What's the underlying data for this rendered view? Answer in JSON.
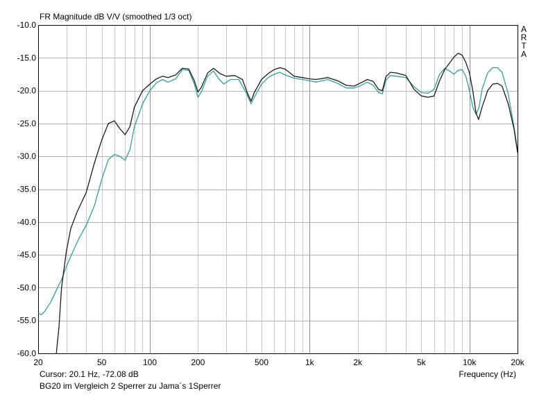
{
  "title": "FR Magnitude dB V/V (smoothed 1/3 oct)",
  "brand_letters": [
    "A",
    "R",
    "T",
    "A"
  ],
  "cursor_readout": "Cursor: 20.1 Hz, -72.08 dB",
  "caption": "BG20 im Vergleich 2 Sperrer zu Jama´s 1Sperrer",
  "chart_data": {
    "type": "line",
    "title": "FR Magnitude dB V/V (smoothed 1/3 oct)",
    "xlabel": "Frequency (Hz)",
    "ylabel": "",
    "x_scale": "log",
    "xlim": [
      20,
      20000
    ],
    "ylim": [
      -60,
      -10
    ],
    "grid": true,
    "x_tick_labels": [
      {
        "value": 20,
        "label": "20"
      },
      {
        "value": 50,
        "label": "50"
      },
      {
        "value": 100,
        "label": "100"
      },
      {
        "value": 200,
        "label": "200"
      },
      {
        "value": 500,
        "label": "500"
      },
      {
        "value": 1000,
        "label": "1k"
      },
      {
        "value": 2000,
        "label": "2k"
      },
      {
        "value": 5000,
        "label": "5k"
      },
      {
        "value": 10000,
        "label": "10k"
      },
      {
        "value": 20000,
        "label": "20k"
      }
    ],
    "y_ticks": [
      -10,
      -15,
      -20,
      -25,
      -30,
      -35,
      -40,
      -45,
      -50,
      -55,
      -60
    ],
    "y_tick_labels": [
      "-10.0",
      "-15.0",
      "-20.0",
      "-25.0",
      "-30.0",
      "-35.0",
      "-40.0",
      "-45.0",
      "-50.0",
      "-55.0",
      "-60.0"
    ],
    "series": [
      {
        "color": "#1a1a1a",
        "points": [
          [
            26,
            -60
          ],
          [
            27,
            -56
          ],
          [
            28,
            -50
          ],
          [
            30,
            -44.5
          ],
          [
            32,
            -41
          ],
          [
            35,
            -38.5
          ],
          [
            40,
            -35.5
          ],
          [
            45,
            -31
          ],
          [
            50,
            -27.5
          ],
          [
            55,
            -25
          ],
          [
            60,
            -24.6
          ],
          [
            65,
            -25.8
          ],
          [
            70,
            -26.7
          ],
          [
            75,
            -25.5
          ],
          [
            80,
            -22.5
          ],
          [
            90,
            -20
          ],
          [
            100,
            -19
          ],
          [
            110,
            -18.2
          ],
          [
            120,
            -17.8
          ],
          [
            130,
            -18
          ],
          [
            145,
            -17.6
          ],
          [
            160,
            -16.6
          ],
          [
            175,
            -16.7
          ],
          [
            190,
            -18.5
          ],
          [
            200,
            -20.2
          ],
          [
            210,
            -19.5
          ],
          [
            230,
            -17.3
          ],
          [
            250,
            -16.6
          ],
          [
            275,
            -17.4
          ],
          [
            300,
            -17.8
          ],
          [
            340,
            -17.7
          ],
          [
            380,
            -18.3
          ],
          [
            410,
            -20.5
          ],
          [
            430,
            -21.6
          ],
          [
            450,
            -20.3
          ],
          [
            500,
            -18.3
          ],
          [
            550,
            -17.4
          ],
          [
            600,
            -16.8
          ],
          [
            650,
            -16.5
          ],
          [
            700,
            -16.7
          ],
          [
            800,
            -17.8
          ],
          [
            900,
            -18.0
          ],
          [
            1000,
            -18.2
          ],
          [
            1100,
            -18.3
          ],
          [
            1300,
            -18.0
          ],
          [
            1500,
            -18.5
          ],
          [
            1700,
            -19.2
          ],
          [
            1900,
            -19.3
          ],
          [
            2100,
            -18.8
          ],
          [
            2300,
            -18.3
          ],
          [
            2500,
            -18.6
          ],
          [
            2700,
            -19.8
          ],
          [
            2850,
            -20.0
          ],
          [
            3000,
            -17.9
          ],
          [
            3200,
            -17.2
          ],
          [
            3500,
            -17.3
          ],
          [
            4000,
            -17.7
          ],
          [
            4500,
            -19.8
          ],
          [
            5000,
            -20.8
          ],
          [
            5500,
            -21.0
          ],
          [
            6000,
            -20.8
          ],
          [
            6500,
            -18.5
          ],
          [
            7000,
            -16.8
          ],
          [
            7500,
            -15.8
          ],
          [
            8000,
            -14.9
          ],
          [
            8500,
            -14.3
          ],
          [
            9000,
            -14.6
          ],
          [
            9500,
            -15.7
          ],
          [
            10000,
            -17.3
          ],
          [
            10500,
            -20
          ],
          [
            11000,
            -23.4
          ],
          [
            11400,
            -24.4
          ],
          [
            12000,
            -22.5
          ],
          [
            13000,
            -20.0
          ],
          [
            14000,
            -19.0
          ],
          [
            15000,
            -18.9
          ],
          [
            16000,
            -19.3
          ],
          [
            17500,
            -22
          ],
          [
            19000,
            -25.8
          ],
          [
            20000,
            -29.4
          ]
        ]
      },
      {
        "color": "#3a9a9a",
        "points": [
          [
            20,
            -53.9
          ],
          [
            21,
            -54.1
          ],
          [
            22,
            -53.6
          ],
          [
            24,
            -52.2
          ],
          [
            26,
            -50.4
          ],
          [
            28,
            -48.8
          ],
          [
            30,
            -46.8
          ],
          [
            33,
            -44.5
          ],
          [
            36,
            -42.5
          ],
          [
            40,
            -40.5
          ],
          [
            45,
            -37.5
          ],
          [
            50,
            -33.5
          ],
          [
            55,
            -30.5
          ],
          [
            60,
            -29.7
          ],
          [
            65,
            -30.0
          ],
          [
            70,
            -30.6
          ],
          [
            75,
            -29.0
          ],
          [
            80,
            -25.5
          ],
          [
            90,
            -22.0
          ],
          [
            100,
            -20.0
          ],
          [
            110,
            -18.8
          ],
          [
            120,
            -18.3
          ],
          [
            130,
            -18.7
          ],
          [
            145,
            -18.2
          ],
          [
            160,
            -16.8
          ],
          [
            175,
            -16.9
          ],
          [
            190,
            -19.0
          ],
          [
            200,
            -21.0
          ],
          [
            210,
            -20.2
          ],
          [
            230,
            -17.8
          ],
          [
            250,
            -17.0
          ],
          [
            270,
            -18.2
          ],
          [
            290,
            -19.0
          ],
          [
            320,
            -18.3
          ],
          [
            360,
            -18.3
          ],
          [
            400,
            -20.3
          ],
          [
            430,
            -22.0
          ],
          [
            450,
            -21.0
          ],
          [
            500,
            -19.0
          ],
          [
            550,
            -18.0
          ],
          [
            600,
            -17.5
          ],
          [
            650,
            -17.2
          ],
          [
            700,
            -17.6
          ],
          [
            800,
            -18.1
          ],
          [
            900,
            -18.3
          ],
          [
            1000,
            -18.5
          ],
          [
            1100,
            -18.7
          ],
          [
            1300,
            -18.3
          ],
          [
            1500,
            -18.9
          ],
          [
            1700,
            -19.6
          ],
          [
            1900,
            -19.6
          ],
          [
            2100,
            -19.2
          ],
          [
            2300,
            -18.7
          ],
          [
            2500,
            -19.2
          ],
          [
            2700,
            -20.3
          ],
          [
            2850,
            -20.5
          ],
          [
            3000,
            -18.4
          ],
          [
            3200,
            -17.7
          ],
          [
            3500,
            -17.8
          ],
          [
            4000,
            -18.0
          ],
          [
            4500,
            -19.4
          ],
          [
            5000,
            -20.3
          ],
          [
            5500,
            -20.4
          ],
          [
            6000,
            -19.8
          ],
          [
            6500,
            -17.5
          ],
          [
            7000,
            -16.6
          ],
          [
            7500,
            -17.0
          ],
          [
            8000,
            -17.5
          ],
          [
            8500,
            -16.9
          ],
          [
            9000,
            -16.8
          ],
          [
            9500,
            -17.8
          ],
          [
            10000,
            -20
          ],
          [
            10500,
            -22.5
          ],
          [
            11000,
            -23.6
          ],
          [
            11500,
            -22.5
          ],
          [
            12000,
            -19.8
          ],
          [
            13000,
            -17.3
          ],
          [
            14000,
            -16.5
          ],
          [
            15000,
            -16.5
          ],
          [
            16000,
            -17.2
          ],
          [
            17500,
            -20.5
          ],
          [
            19000,
            -25.5
          ],
          [
            20000,
            -29.0
          ]
        ]
      }
    ]
  }
}
